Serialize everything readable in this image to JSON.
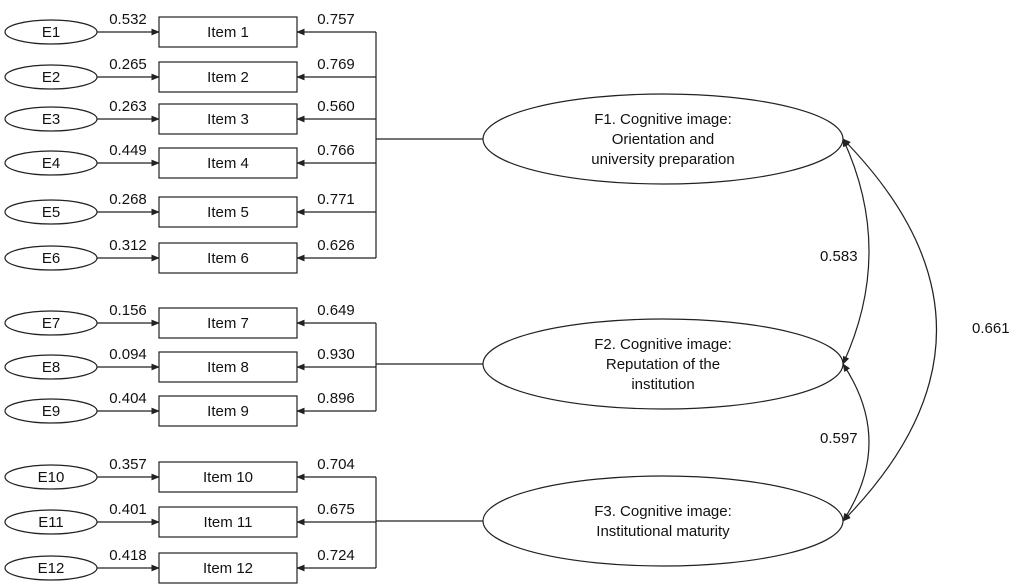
{
  "errors": [
    "E1",
    "E2",
    "E3",
    "E4",
    "E5",
    "E6",
    "E7",
    "E8",
    "E9",
    "E10",
    "E11",
    "E12"
  ],
  "items": [
    "Item 1",
    "Item 2",
    "Item 3",
    "Item 4",
    "Item 5",
    "Item 6",
    "Item 7",
    "Item 8",
    "Item 9",
    "Item 10",
    "Item 11",
    "Item 12"
  ],
  "error_values": [
    "0.532",
    "0.265",
    "0.263",
    "0.449",
    "0.268",
    "0.312",
    "0.156",
    "0.094",
    "0.404",
    "0.357",
    "0.401",
    "0.418"
  ],
  "loadings": [
    "0.757",
    "0.769",
    "0.560",
    "0.766",
    "0.771",
    "0.626",
    "0.649",
    "0.930",
    "0.896",
    "0.704",
    "0.675",
    "0.724"
  ],
  "factors": [
    {
      "lines": [
        "F1. Cognitive image:",
        "Orientation and",
        "university preparation"
      ],
      "items": [
        1,
        2,
        3,
        4,
        5,
        6
      ]
    },
    {
      "lines": [
        "F2. Cognitive image:",
        "Reputation of the",
        "institution"
      ],
      "items": [
        7,
        8,
        9
      ]
    },
    {
      "lines": [
        "F3. Cognitive image:",
        "Institutional maturity"
      ],
      "items": [
        10,
        11,
        12
      ]
    }
  ],
  "correlations": [
    {
      "from": "F1",
      "to": "F2",
      "value": "0.583"
    },
    {
      "from": "F2",
      "to": "F3",
      "value": "0.597"
    },
    {
      "from": "F1",
      "to": "F3",
      "value": "0.661"
    }
  ]
}
